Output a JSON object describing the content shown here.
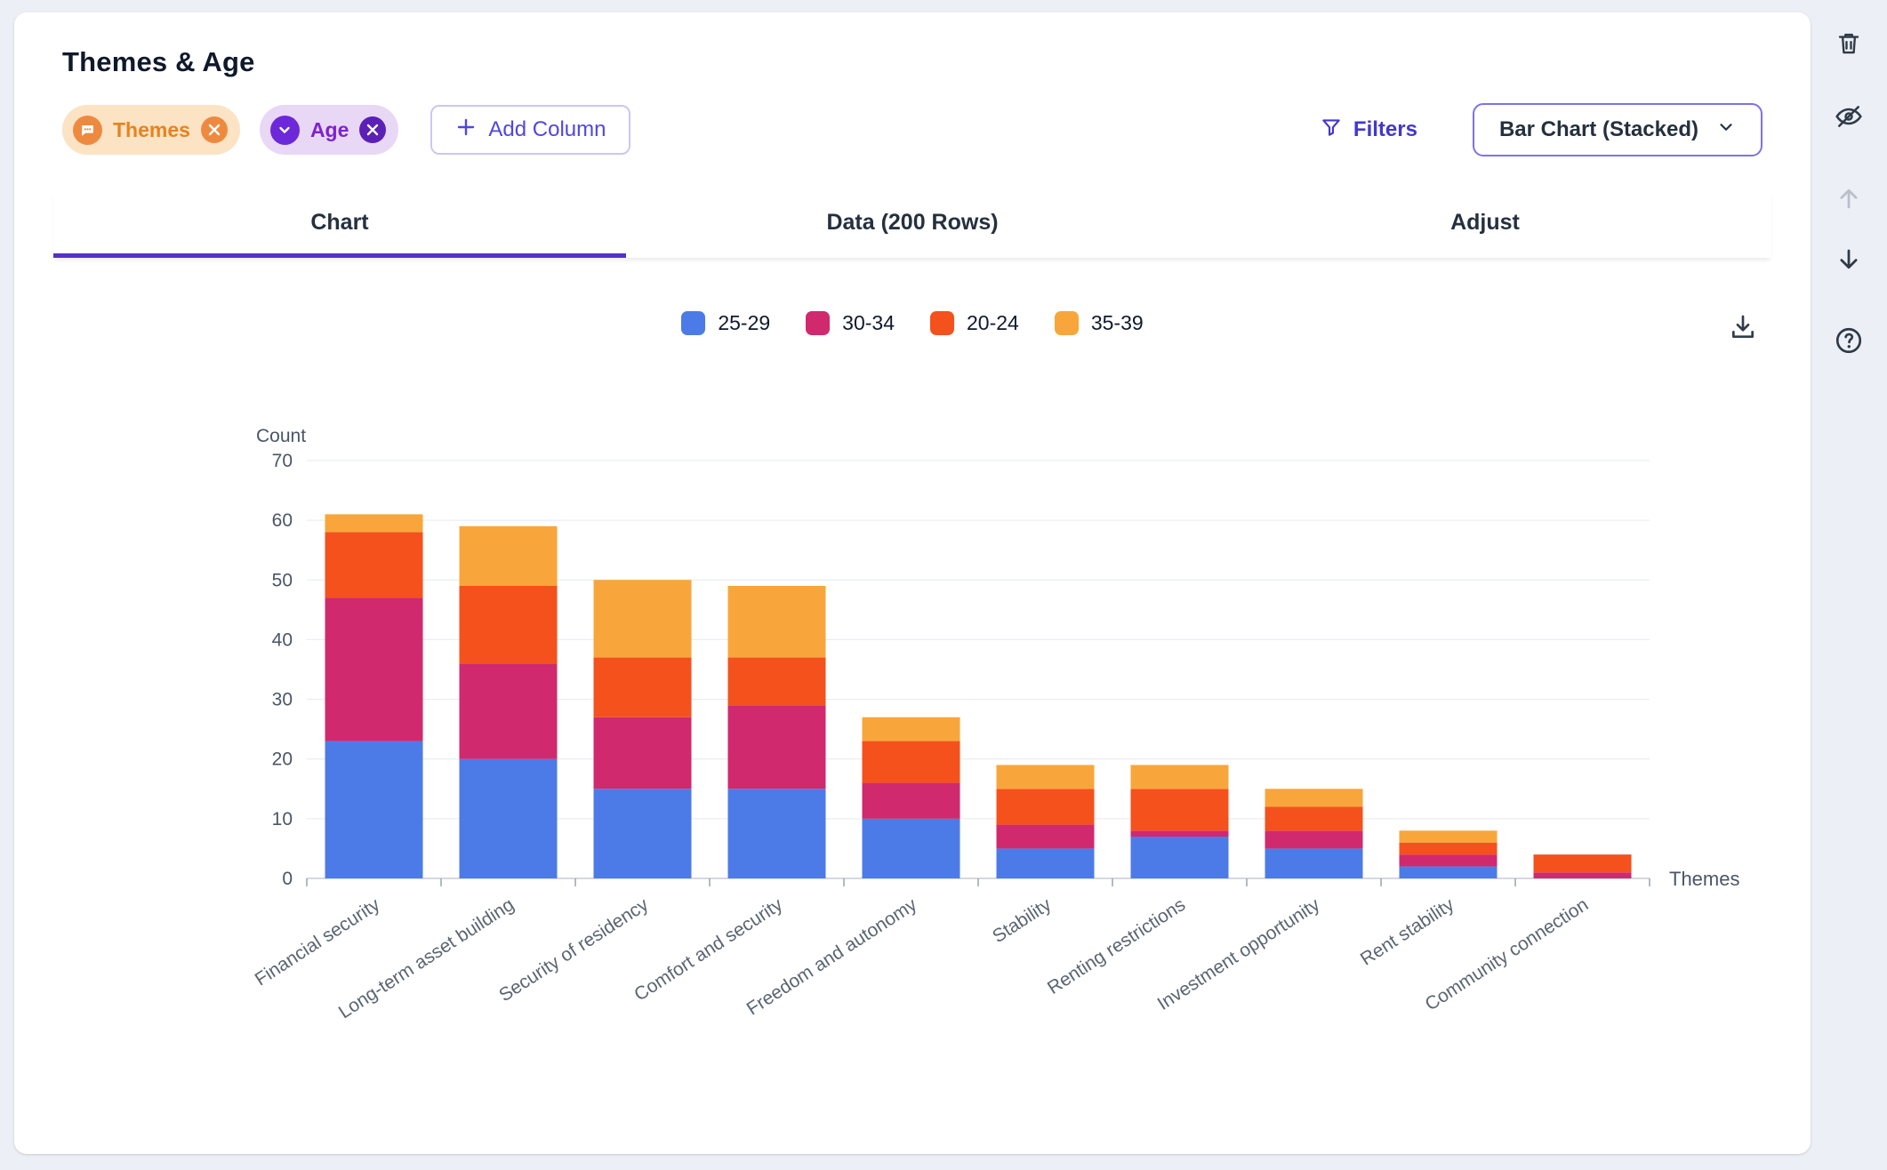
{
  "header": {
    "title": "Themes & Age"
  },
  "pills": [
    {
      "label": "Themes"
    },
    {
      "label": "Age"
    }
  ],
  "toolbar": {
    "add_column_label": "Add Column",
    "filters_label": "Filters",
    "chart_type_label": "Bar Chart (Stacked)"
  },
  "tabs": [
    {
      "label": "Chart"
    },
    {
      "label": "Data (200 Rows)"
    },
    {
      "label": "Adjust"
    }
  ],
  "chart_data": {
    "type": "bar",
    "stacked": true,
    "xlabel": "Themes",
    "ylabel": "Count",
    "ylim": [
      0,
      70
    ],
    "yticks": [
      0,
      10,
      20,
      30,
      40,
      50,
      60,
      70
    ],
    "grid": "horizontal",
    "legend_position": "top-center",
    "categories": [
      "Financial security",
      "Long-term asset building",
      "Security of residency",
      "Comfort and security",
      "Freedom and autonomy",
      "Stability",
      "Renting restrictions",
      "Investment opportunity",
      "Rent stability",
      "Community connection"
    ],
    "series": [
      {
        "name": "25-29",
        "color": "#4C7BE8",
        "values": [
          23,
          20,
          15,
          15,
          10,
          5,
          7,
          5,
          2,
          0
        ]
      },
      {
        "name": "30-34",
        "color": "#D0296E",
        "values": [
          24,
          16,
          12,
          14,
          6,
          4,
          1,
          3,
          2,
          1
        ]
      },
      {
        "name": "20-24",
        "color": "#F4511D",
        "values": [
          11,
          13,
          10,
          8,
          7,
          6,
          7,
          4,
          2,
          3
        ]
      },
      {
        "name": "35-39",
        "color": "#F8A63B",
        "values": [
          3,
          10,
          13,
          12,
          4,
          4,
          4,
          3,
          2,
          0
        ]
      }
    ]
  },
  "icons": {
    "themes_pill_icon": "chat-dots-icon",
    "age_pill_icon": "chevron-circle-icon",
    "close": "close-icon",
    "plus": "plus-icon",
    "filter": "filter-funnel-icon",
    "chevron_down": "chevron-down-icon",
    "download": "download-icon",
    "trash": "trash-icon",
    "eye_off": "eye-off-icon",
    "arrow_up": "arrow-up-icon",
    "arrow_down": "arrow-down-icon",
    "help": "help-circle-icon"
  }
}
